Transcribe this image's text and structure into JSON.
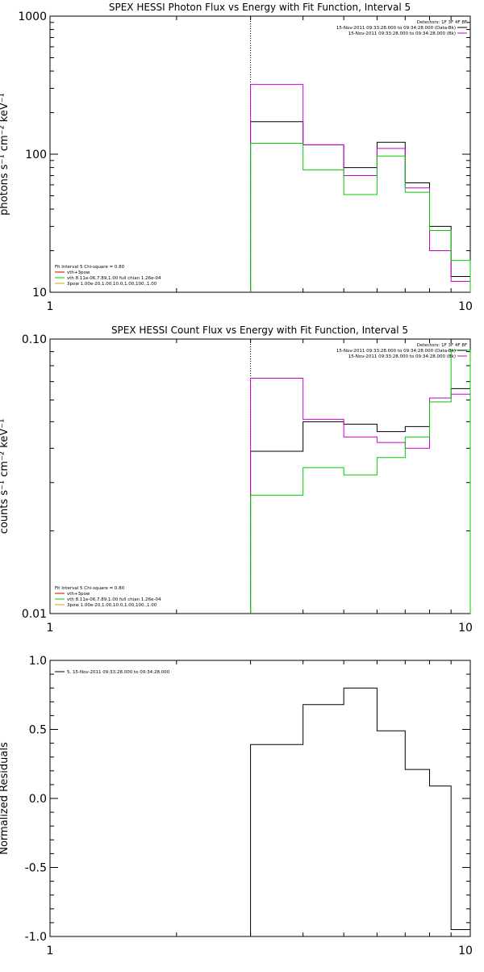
{
  "chart_data": [
    {
      "type": "line",
      "title": "SPEX HESSI Photon Flux vs Energy with Fit Function, Interval 5",
      "xlabel": "",
      "ylabel": "photons s⁻¹ cm⁻² keV⁻¹",
      "xscale": "log",
      "yscale": "log",
      "xlim": [
        1,
        10
      ],
      "ylim": [
        10,
        1000
      ],
      "xticks": [
        "1",
        "10"
      ],
      "yticks": [
        "10",
        "100",
        "1000"
      ],
      "vline": 3,
      "legend_right": {
        "header": "Detectors: 1F 3F 4F 8F",
        "entries": [
          {
            "label": "15-Nov-2011 09:33:28.000 to 09:34:28.000 (Data-Bk)",
            "color": "#000000"
          },
          {
            "label": "15-Nov-2011 09:33:28.000 to 09:34:28.000 (Bk)",
            "color": "#cc00cc"
          }
        ]
      },
      "legend_left": {
        "header": "Fit Interval 5   Chi-square = 0.80",
        "entries": [
          {
            "label": "vth+3pow",
            "color": "#cc0000"
          },
          {
            "label": "vth 8.11e-06,7.89,1.00  full chian 1.26e-04",
            "color": "#00cc00"
          },
          {
            "label": "3pow 1.00e-20,1.00,10.0,1.00,100.,1.00",
            "color": "#ccaa00"
          }
        ]
      },
      "series": [
        {
          "color": "#000000",
          "edges": [
            3,
            4,
            5,
            6,
            7,
            8,
            9,
            10
          ],
          "values": [
            172,
            117,
            80,
            122,
            62,
            30,
            13
          ]
        },
        {
          "color": "#cc00cc",
          "edges": [
            3,
            4,
            5,
            6,
            7,
            8,
            9,
            10
          ],
          "values": [
            320,
            117,
            70,
            110,
            57,
            20,
            12
          ]
        },
        {
          "color": "#00cc00",
          "edges": [
            3,
            4,
            5,
            6,
            7,
            8,
            9,
            10
          ],
          "values": [
            120,
            77,
            51,
            97,
            53,
            28,
            17
          ]
        }
      ]
    },
    {
      "type": "line",
      "title": "SPEX HESSI Count Flux vs Energy with Fit Function, Interval 5",
      "xlabel": "",
      "ylabel": "counts s⁻¹ cm⁻² keV⁻¹",
      "xscale": "log",
      "yscale": "log",
      "xlim": [
        1,
        10
      ],
      "ylim": [
        0.01,
        0.1
      ],
      "xticks": [
        "1",
        "10"
      ],
      "yticks": [
        "0.01",
        "0.10"
      ],
      "vline": 3,
      "legend_right": {
        "header": "Detectors: 1F 3F 4F 8F",
        "entries": [
          {
            "label": "15-Nov-2011 09:33:28.000 to 09:34:28.000 (Data-Bk)",
            "color": "#000000"
          },
          {
            "label": "15-Nov-2011 09:33:28.000 to 09:34:28.000 (Bk)",
            "color": "#cc00cc"
          }
        ]
      },
      "legend_left": {
        "header": "Fit Interval 5   Chi-square = 0.80",
        "entries": [
          {
            "label": "vth+3pow",
            "color": "#cc0000"
          },
          {
            "label": "vth 8.11e-06,7.89,1.00  full chian 1.26e-04",
            "color": "#00cc00"
          },
          {
            "label": "3pow 1.00e-20,1.00,10.0,1.00,100.,1.00",
            "color": "#ccaa00"
          }
        ]
      },
      "series": [
        {
          "color": "#000000",
          "edges": [
            3,
            4,
            5,
            6,
            7,
            8,
            9,
            10
          ],
          "values": [
            0.039,
            0.05,
            0.049,
            0.046,
            0.048,
            0.061,
            0.066
          ]
        },
        {
          "color": "#cc00cc",
          "edges": [
            3,
            4,
            5,
            6,
            7,
            8,
            9,
            10
          ],
          "values": [
            0.072,
            0.051,
            0.044,
            0.042,
            0.04,
            0.061,
            0.063
          ]
        },
        {
          "color": "#00cc00",
          "edges": [
            3,
            4,
            5,
            6,
            7,
            8,
            9,
            10
          ],
          "values": [
            0.027,
            0.034,
            0.032,
            0.037,
            0.044,
            0.059,
            0.091
          ]
        }
      ]
    },
    {
      "type": "line",
      "title": "",
      "xlabel": "",
      "ylabel": "Normalized Residuals",
      "xscale": "log",
      "yscale": "linear",
      "xlim": [
        1,
        10
      ],
      "ylim": [
        -1.0,
        1.0
      ],
      "xticks": [
        "1",
        "10"
      ],
      "yticks": [
        "-1.0",
        "-0.5",
        "0.0",
        "0.5",
        "1.0"
      ],
      "legend_left": {
        "header": "",
        "entries": [
          {
            "label": "5. 15-Nov-2011 09:33:28.000 to 09:34:28.000",
            "color": "#000000"
          }
        ]
      },
      "series": [
        {
          "color": "#000000",
          "edges": [
            3,
            4,
            5,
            6,
            7,
            8,
            9,
            10
          ],
          "values": [
            0.39,
            0.68,
            0.8,
            0.49,
            0.21,
            0.09,
            -0.95
          ]
        }
      ]
    }
  ]
}
